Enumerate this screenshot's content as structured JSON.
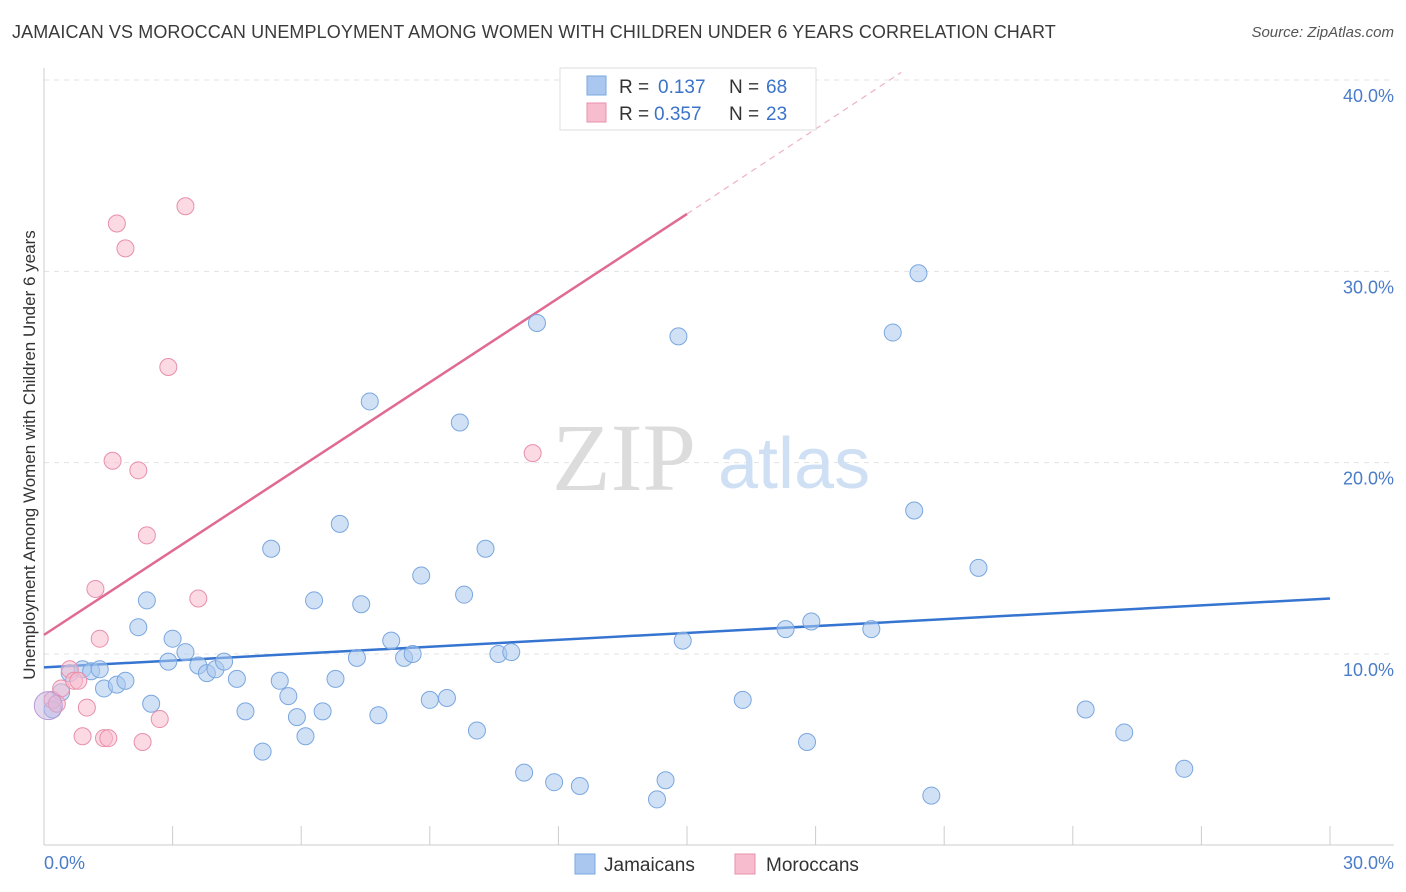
{
  "title": "JAMAICAN VS MOROCCAN UNEMPLOYMENT AMONG WOMEN WITH CHILDREN UNDER 6 YEARS CORRELATION CHART",
  "source": "Source: ZipAtlas.com",
  "watermark": {
    "zip": "ZIP",
    "atlas": "atlas"
  },
  "legend": {
    "rows": [
      {
        "r_label": "R =",
        "r_value": "0.137",
        "n_label": "N =",
        "n_value": "68",
        "color": "#aac8ef"
      },
      {
        "r_label": "R =",
        "r_value": "0.357",
        "n_label": "N =",
        "n_value": "23",
        "color": "#f7bccd"
      }
    ]
  },
  "bottom_legend": [
    {
      "label": "Jamaicans",
      "color": "#aac8ef"
    },
    {
      "label": "Moroccans",
      "color": "#f7bccd"
    }
  ],
  "chart_data": {
    "type": "scatter",
    "xlabel": "",
    "ylabel": "Unemployment Among Women with Children Under 6 years",
    "xlim": [
      0,
      30
    ],
    "ylim": [
      0,
      40
    ],
    "x_tick_labels": [
      "0.0%",
      "30.0%"
    ],
    "y_ticks": [
      10,
      20,
      30,
      40
    ],
    "y_tick_labels": [
      "10.0%",
      "20.0%",
      "30.0%",
      "40.0%"
    ],
    "grid": true,
    "legend_position": "top-center",
    "series": [
      {
        "name": "Jamaicans",
        "color": "#aac8ef",
        "stroke": "#7aa7df",
        "line_color": "#3574d0",
        "trend": {
          "x": [
            0,
            30
          ],
          "y": [
            9.3,
            12.9
          ]
        },
        "points": [
          [
            0.2,
            7.1
          ],
          [
            0.4,
            8.0
          ],
          [
            0.6,
            9.0
          ],
          [
            0.9,
            9.2
          ],
          [
            1.1,
            9.1
          ],
          [
            1.3,
            9.2
          ],
          [
            1.4,
            8.2
          ],
          [
            1.7,
            8.4
          ],
          [
            1.9,
            8.6
          ],
          [
            2.2,
            11.4
          ],
          [
            2.4,
            12.8
          ],
          [
            2.5,
            7.4
          ],
          [
            2.9,
            9.6
          ],
          [
            3.0,
            10.8
          ],
          [
            3.3,
            10.1
          ],
          [
            3.6,
            9.4
          ],
          [
            3.8,
            9.0
          ],
          [
            4.0,
            9.2
          ],
          [
            4.2,
            9.6
          ],
          [
            4.5,
            8.7
          ],
          [
            4.7,
            7.0
          ],
          [
            5.1,
            4.9
          ],
          [
            5.3,
            15.5
          ],
          [
            5.5,
            8.6
          ],
          [
            5.7,
            7.8
          ],
          [
            5.9,
            6.7
          ],
          [
            6.1,
            5.7
          ],
          [
            6.3,
            12.8
          ],
          [
            6.5,
            7.0
          ],
          [
            6.8,
            8.7
          ],
          [
            6.9,
            16.8
          ],
          [
            7.3,
            9.8
          ],
          [
            7.4,
            12.6
          ],
          [
            7.6,
            23.2
          ],
          [
            7.8,
            6.8
          ],
          [
            8.1,
            10.7
          ],
          [
            8.4,
            9.8
          ],
          [
            8.6,
            10.0
          ],
          [
            8.8,
            14.1
          ],
          [
            9.0,
            7.6
          ],
          [
            9.4,
            7.7
          ],
          [
            9.7,
            22.1
          ],
          [
            9.8,
            13.1
          ],
          [
            10.1,
            6.0
          ],
          [
            10.3,
            15.5
          ],
          [
            10.6,
            10.0
          ],
          [
            10.9,
            10.1
          ],
          [
            11.2,
            3.8
          ],
          [
            11.5,
            27.3
          ],
          [
            11.9,
            3.3
          ],
          [
            12.5,
            3.1
          ],
          [
            14.3,
            2.4
          ],
          [
            14.5,
            3.4
          ],
          [
            14.8,
            26.6
          ],
          [
            14.9,
            10.7
          ],
          [
            16.3,
            7.6
          ],
          [
            17.3,
            11.3
          ],
          [
            17.8,
            5.4
          ],
          [
            17.9,
            11.7
          ],
          [
            19.3,
            11.3
          ],
          [
            19.8,
            26.8
          ],
          [
            20.3,
            17.5
          ],
          [
            20.4,
            29.9
          ],
          [
            20.7,
            2.6
          ],
          [
            21.8,
            14.5
          ],
          [
            24.3,
            7.1
          ],
          [
            25.2,
            5.9
          ],
          [
            26.6,
            4.0
          ]
        ]
      },
      {
        "name": "Moroccans",
        "color": "#f7bccd",
        "stroke": "#e88fab",
        "line_color": "#e06a93",
        "trend": {
          "x": [
            0,
            15
          ],
          "y": [
            11.0,
            33.0
          ]
        },
        "trend_dashed": {
          "x": [
            15,
            20
          ],
          "y": [
            33.0,
            40.4
          ]
        },
        "points": [
          [
            0.2,
            7.6
          ],
          [
            0.4,
            8.2
          ],
          [
            0.6,
            9.2
          ],
          [
            0.7,
            8.6
          ],
          [
            0.8,
            8.6
          ],
          [
            0.9,
            5.7
          ],
          [
            1.0,
            7.2
          ],
          [
            1.2,
            13.4
          ],
          [
            1.3,
            10.8
          ],
          [
            1.4,
            5.6
          ],
          [
            1.5,
            5.6
          ],
          [
            1.6,
            20.1
          ],
          [
            1.7,
            32.5
          ],
          [
            1.9,
            31.2
          ],
          [
            2.2,
            19.6
          ],
          [
            2.3,
            5.4
          ],
          [
            2.4,
            16.2
          ],
          [
            2.7,
            6.6
          ],
          [
            2.9,
            25.0
          ],
          [
            3.3,
            33.4
          ],
          [
            3.6,
            12.9
          ],
          [
            11.4,
            20.5
          ],
          [
            0.3,
            7.4
          ]
        ]
      }
    ]
  }
}
